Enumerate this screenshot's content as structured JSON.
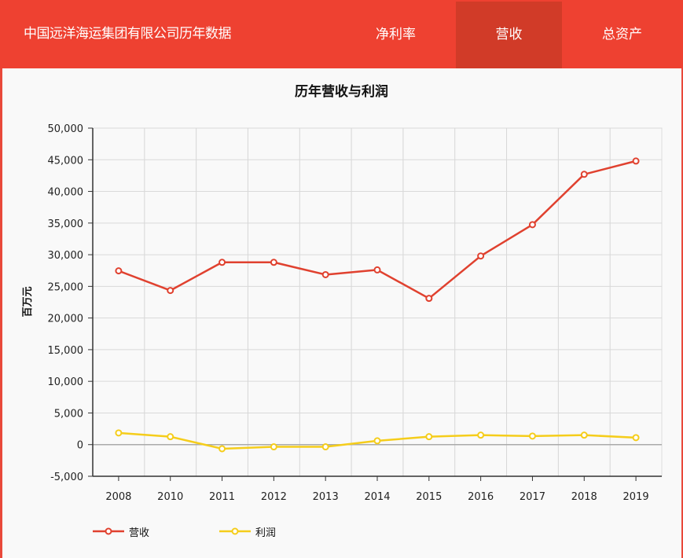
{
  "header": {
    "title": "中国远洋海运集团有限公司历年数据",
    "tabs": [
      {
        "label": "净利率",
        "active": false
      },
      {
        "label": "营收",
        "active": true
      },
      {
        "label": "总资产",
        "active": false
      }
    ]
  },
  "colors": {
    "header_bg": "#ee4131",
    "active_tab_bg": "#d13b28",
    "revenue_line": "#e0412f",
    "profit_line": "#f5cd1b"
  },
  "chart_data": {
    "type": "line",
    "title": "历年营收与利润",
    "xlabel": "",
    "ylabel": "百万元",
    "categories": [
      "2008",
      "2010",
      "2011",
      "2012",
      "2013",
      "2014",
      "2015",
      "2016",
      "2017",
      "2018",
      "2019"
    ],
    "series": [
      {
        "name": "营收",
        "color": "#e0412f",
        "values": [
          27450,
          24350,
          28800,
          28800,
          26850,
          27600,
          23100,
          29800,
          34750,
          42700,
          44800
        ]
      },
      {
        "name": "利润",
        "color": "#f5cd1b",
        "values": [
          1850,
          1250,
          -650,
          -350,
          -350,
          600,
          1250,
          1500,
          1350,
          1500,
          1100
        ]
      }
    ],
    "ylim": [
      -5000,
      50000
    ],
    "yticks": [
      "-5,000",
      "0",
      "5,000",
      "10,000",
      "15,000",
      "20,000",
      "25,000",
      "30,000",
      "35,000",
      "40,000",
      "45,000",
      "50,000"
    ],
    "grid": true,
    "legend_position": "bottom-left"
  },
  "legend": [
    {
      "label": "营收"
    },
    {
      "label": "利润"
    }
  ]
}
